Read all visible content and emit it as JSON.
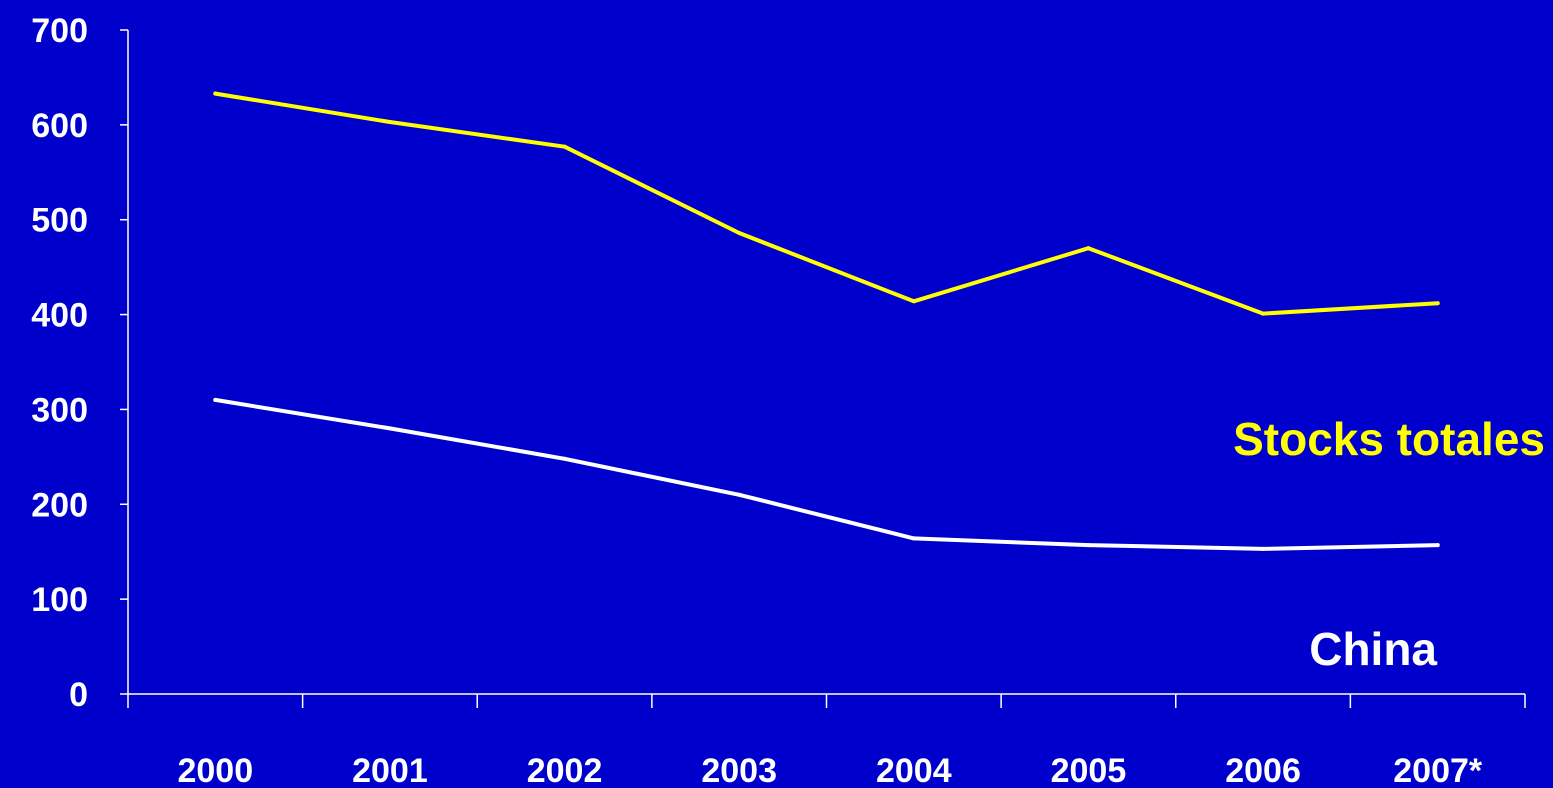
{
  "chart_data": {
    "type": "line",
    "title": "",
    "xlabel": "",
    "ylabel": "",
    "categories": [
      "2000",
      "2001",
      "2002",
      "2003",
      "2004",
      "2005",
      "2006",
      "2007*"
    ],
    "ylim": [
      0,
      700
    ],
    "yticks": [
      0,
      100,
      200,
      300,
      400,
      500,
      600,
      700
    ],
    "grid": false,
    "series": [
      {
        "name": "Stocks totales",
        "color": "#FFFF00",
        "values": [
          633,
          603,
          577,
          486,
          414,
          470,
          401,
          412
        ]
      },
      {
        "name": "China",
        "color": "#FFFFFF",
        "values": [
          310,
          280,
          248,
          210,
          164,
          157,
          153,
          157
        ]
      }
    ]
  },
  "colors": {
    "background": "#0000CC",
    "axis": "#FFFFFF",
    "text": "#FFFFFF"
  }
}
